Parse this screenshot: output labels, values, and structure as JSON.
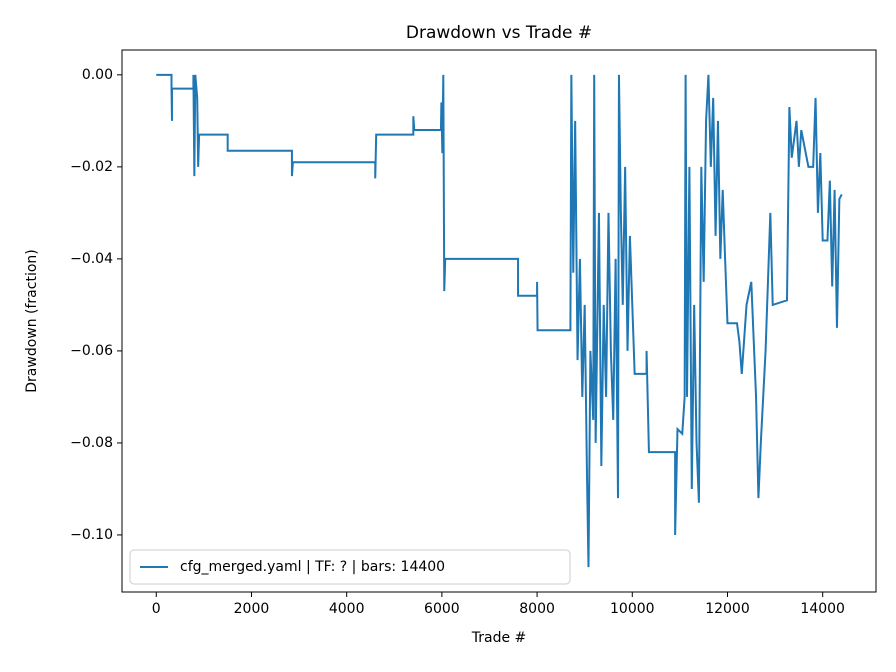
{
  "chart_data": {
    "type": "line",
    "title": "Drawdown vs Trade #",
    "xlabel": "Trade #",
    "ylabel": "Drawdown (fraction)",
    "x": [
      0,
      320,
      320,
      330,
      330,
      780,
      780,
      800,
      820,
      860,
      880,
      900,
      1500,
      1500,
      2850,
      2850,
      2870,
      4600,
      4600,
      4620,
      5400,
      5400,
      5420,
      5980,
      5990,
      6010,
      6030,
      6050,
      6070,
      7600,
      7600,
      8000,
      8000,
      8010,
      8700,
      8720,
      8760,
      8800,
      8850,
      8900,
      8950,
      9000,
      9050,
      9080,
      9120,
      9180,
      9200,
      9230,
      9300,
      9350,
      9400,
      9450,
      9500,
      9550,
      9600,
      9650,
      9700,
      9720,
      9760,
      9800,
      9850,
      9900,
      9950,
      10000,
      10050,
      10300,
      10300,
      10350,
      10900,
      10900,
      10950,
      11050,
      11100,
      11120,
      11150,
      11200,
      11250,
      11300,
      11350,
      11400,
      11450,
      11500,
      11550,
      11600,
      11650,
      11700,
      11750,
      11800,
      11850,
      11900,
      11950,
      12000,
      12200,
      12250,
      12300,
      12400,
      12500,
      12600,
      12650,
      12700,
      12800,
      12900,
      12950,
      13250,
      13300,
      13350,
      13450,
      13500,
      13550,
      13700,
      13800,
      13850,
      13900,
      13950,
      14000,
      14100,
      14150,
      14200,
      14250,
      14300,
      14350,
      14400
    ],
    "series": [
      {
        "name": "cfg_merged.yaml | TF: ? | bars: 14400",
        "color": "#1f77b4",
        "values": [
          0,
          0,
          -0.003,
          -0.01,
          -0.003,
          -0.003,
          0,
          -0.022,
          0,
          -0.005,
          -0.02,
          -0.013,
          -0.013,
          -0.0165,
          -0.0165,
          -0.022,
          -0.019,
          -0.019,
          -0.0225,
          -0.013,
          -0.013,
          -0.009,
          -0.012,
          -0.012,
          -0.006,
          -0.017,
          0,
          -0.047,
          -0.04,
          -0.04,
          -0.048,
          -0.048,
          -0.045,
          -0.0555,
          -0.0555,
          0,
          -0.043,
          -0.01,
          -0.062,
          -0.04,
          -0.07,
          -0.05,
          -0.088,
          -0.107,
          -0.06,
          -0.075,
          0,
          -0.08,
          -0.03,
          -0.085,
          -0.05,
          -0.07,
          -0.03,
          -0.06,
          -0.075,
          -0.04,
          -0.092,
          0,
          -0.03,
          -0.05,
          -0.02,
          -0.06,
          -0.035,
          -0.05,
          -0.065,
          -0.065,
          -0.06,
          -0.082,
          -0.082,
          -0.1,
          -0.077,
          -0.078,
          -0.07,
          0,
          -0.07,
          -0.02,
          -0.09,
          -0.05,
          -0.08,
          -0.093,
          -0.02,
          -0.045,
          -0.01,
          0,
          -0.02,
          -0.005,
          -0.035,
          -0.01,
          -0.04,
          -0.025,
          -0.04,
          -0.054,
          -0.054,
          -0.058,
          -0.065,
          -0.05,
          -0.045,
          -0.07,
          -0.092,
          -0.08,
          -0.06,
          -0.03,
          -0.05,
          -0.049,
          -0.007,
          -0.018,
          -0.01,
          -0.02,
          -0.012,
          -0.02,
          -0.02,
          -0.005,
          -0.03,
          -0.017,
          -0.036,
          -0.036,
          -0.023,
          -0.046,
          -0.025,
          -0.055,
          -0.027,
          -0.026
        ]
      }
    ],
    "xlim": [
      -720,
      15120
    ],
    "ylim": [
      -0.1124,
      0.0054
    ],
    "xticks": [
      0,
      2000,
      4000,
      6000,
      8000,
      10000,
      12000,
      14000
    ],
    "yticks": [
      {
        "value": 0,
        "label": "0.00"
      },
      {
        "value": -0.02,
        "label": "−0.02"
      },
      {
        "value": -0.04,
        "label": "−0.04"
      },
      {
        "value": -0.06,
        "label": "−0.06"
      },
      {
        "value": -0.08,
        "label": "−0.08"
      },
      {
        "value": -0.1,
        "label": "−0.10"
      }
    ],
    "legend": "lower left",
    "grid": false
  }
}
